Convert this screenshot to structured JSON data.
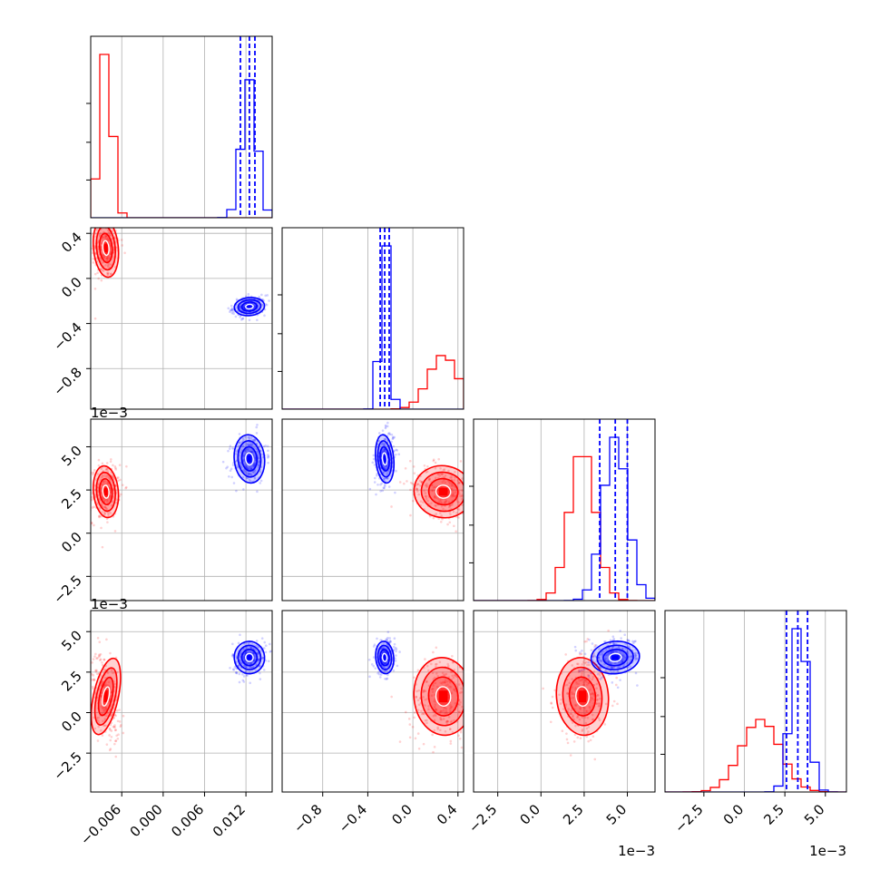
{
  "chart_data": {
    "type": "corner",
    "colors": {
      "red": "#ff0000",
      "blue": "#0000ff"
    },
    "grid": true,
    "parameters": [
      {
        "range": [
          -0.0105,
          0.0158
        ],
        "ticks": [
          -0.006,
          0.0,
          0.006,
          0.012
        ],
        "tick_labels": [
          "−0.006",
          "0.000",
          "0.006",
          "0.012"
        ],
        "offset_label": ""
      },
      {
        "range": [
          -1.16,
          0.45
        ],
        "ticks": [
          -0.8,
          -0.4,
          0.0,
          0.4
        ],
        "tick_labels": [
          "−0.8",
          "−0.4",
          "0.0",
          "0.4"
        ],
        "offset_label": ""
      },
      {
        "range": [
          -3.9,
          6.6
        ],
        "ticks": [
          -2.5,
          0.0,
          2.5,
          5.0
        ],
        "tick_labels": [
          "−2.5",
          "0.0",
          "2.5",
          "5.0"
        ],
        "offset_label": "1e−3"
      },
      {
        "range": [
          -4.9,
          6.3
        ],
        "ticks": [
          -2.5,
          0.0,
          2.5,
          5.0
        ],
        "tick_labels": [
          "−2.5",
          "0.0",
          "2.5",
          "5.0"
        ],
        "offset_label": "1e−3"
      }
    ],
    "series": [
      {
        "color": "red",
        "mean": [
          -0.0083,
          0.27,
          2.4,
          1.0
        ],
        "std": [
          0.0009,
          0.13,
          0.75,
          1.2
        ]
      },
      {
        "color": "blue",
        "mean": [
          0.0125,
          -0.25,
          4.3,
          3.4
        ],
        "std": [
          0.0011,
          0.04,
          0.7,
          0.5
        ]
      }
    ],
    "quantiles": [
      {
        "color": "blue",
        "param": 0,
        "values": [
          0.0112,
          0.0125,
          0.0133
        ]
      },
      {
        "color": "blue",
        "param": 1,
        "values": [
          -0.29,
          -0.25,
          -0.21
        ]
      },
      {
        "color": "blue",
        "param": 2,
        "values": [
          3.4,
          4.3,
          5.0
        ]
      },
      {
        "color": "blue",
        "param": 3,
        "values": [
          2.6,
          3.3,
          3.9
        ]
      }
    ]
  }
}
